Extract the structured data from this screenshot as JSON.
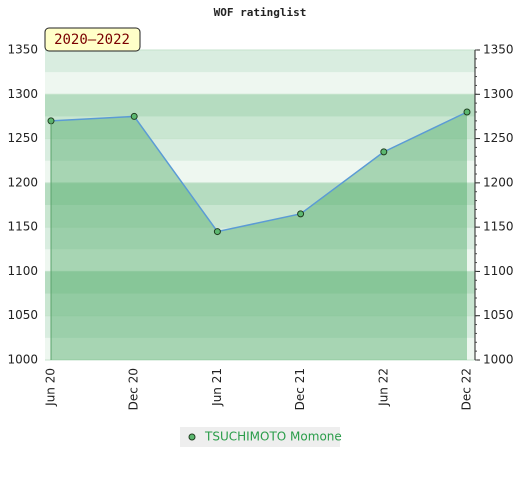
{
  "chart_data": {
    "type": "line",
    "title": "WOF ratinglist",
    "annotation": "2020–2022",
    "categories": [
      "Jun 20",
      "Dec 20",
      "Jun 21",
      "Dec 21",
      "Jun 22",
      "Dec 22"
    ],
    "series": [
      {
        "name": "TSUCHIMOTO Momone",
        "color": "#5b9bd5",
        "values": [
          1270,
          1275,
          1145,
          1165,
          1235,
          1280
        ]
      }
    ],
    "ylim": [
      1000,
      1350
    ],
    "yticks": [
      1000,
      1050,
      1100,
      1150,
      1200,
      1250,
      1300,
      1350
    ],
    "grid": true
  }
}
